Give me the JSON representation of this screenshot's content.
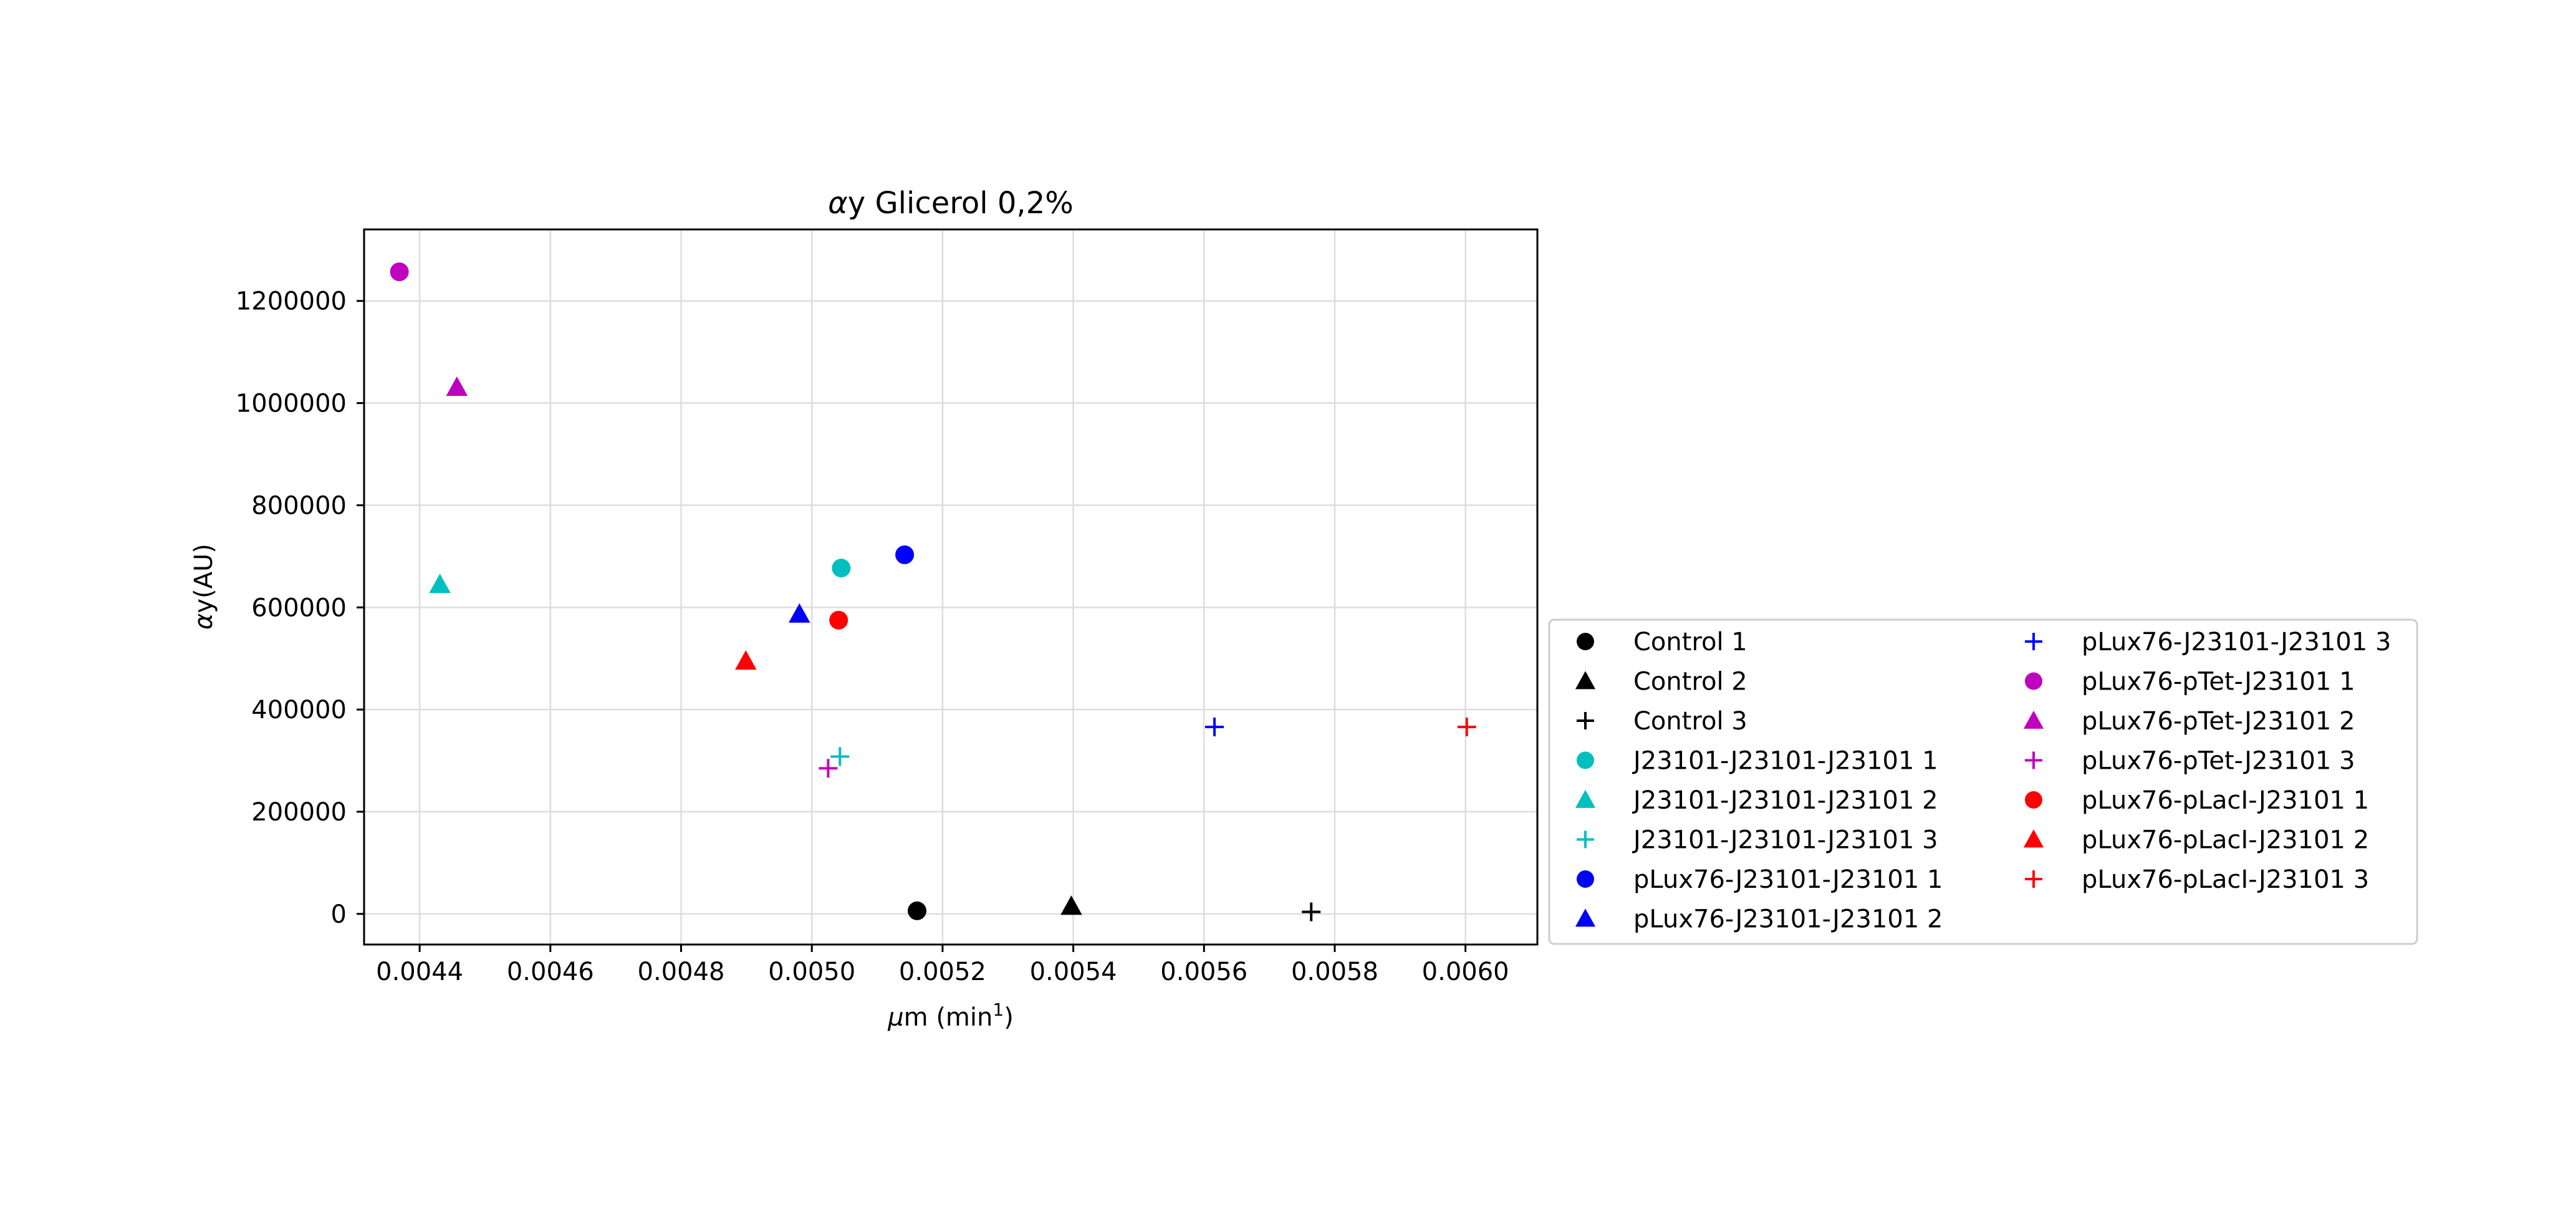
{
  "chart_data": {
    "type": "scatter",
    "title": {
      "prefix": "α",
      "rest": "y Glicerol 0,2%"
    },
    "xlabel": {
      "prefix": "μ",
      "rest": "m (min",
      "sup": "1",
      "close": ")"
    },
    "ylabel": {
      "prefix": "α",
      "rest": "y(AU)"
    },
    "xlim": [
      0.004315,
      0.00611
    ],
    "ylim": [
      -60000,
      1340000
    ],
    "x_ticks": [
      {
        "value": 0.0044,
        "label": "0.0044"
      },
      {
        "value": 0.0046,
        "label": "0.0046"
      },
      {
        "value": 0.0048,
        "label": "0.0048"
      },
      {
        "value": 0.005,
        "label": "0.0050"
      },
      {
        "value": 0.0052,
        "label": "0.0052"
      },
      {
        "value": 0.0054,
        "label": "0.0054"
      },
      {
        "value": 0.0056,
        "label": "0.0056"
      },
      {
        "value": 0.0058,
        "label": "0.0058"
      },
      {
        "value": 0.006,
        "label": "0.0060"
      }
    ],
    "y_ticks": [
      {
        "value": 0,
        "label": "0"
      },
      {
        "value": 200000,
        "label": "200000"
      },
      {
        "value": 400000,
        "label": "400000"
      },
      {
        "value": 600000,
        "label": "600000"
      },
      {
        "value": 800000,
        "label": "800000"
      },
      {
        "value": 1000000,
        "label": "1000000"
      },
      {
        "value": 1200000,
        "label": "1200000"
      }
    ],
    "grid": true,
    "legend_position": "right, outside plot, two columns",
    "series": [
      {
        "name": "Control 1",
        "marker": "circle",
        "color": "#000000",
        "x": 0.005161,
        "y": 6000
      },
      {
        "name": "Control 2",
        "marker": "triangle",
        "color": "#000000",
        "x": 0.005397,
        "y": 15000
      },
      {
        "name": "Control 3",
        "marker": "plus",
        "color": "#000000",
        "x": 0.005764,
        "y": 4000
      },
      {
        "name": "J23101-J23101-J23101 1",
        "marker": "circle",
        "color": "#00bfbf",
        "x": 0.005045,
        "y": 677000
      },
      {
        "name": "J23101-J23101-J23101 2",
        "marker": "triangle",
        "color": "#00bfbf",
        "x": 0.004431,
        "y": 645000
      },
      {
        "name": "J23101-J23101-J23101 3",
        "marker": "plus",
        "color": "#00bfbf",
        "x": 0.005043,
        "y": 308000
      },
      {
        "name": "pLux76-J23101-J23101 1",
        "marker": "circle",
        "color": "#0000ff",
        "x": 0.005142,
        "y": 703000
      },
      {
        "name": "pLux76-J23101-J23101 2",
        "marker": "triangle",
        "color": "#0000ff",
        "x": 0.004981,
        "y": 587000
      },
      {
        "name": "pLux76-J23101-J23101 3",
        "marker": "plus",
        "color": "#0000ff",
        "x": 0.005616,
        "y": 366000
      },
      {
        "name": "pLux76-pTet-J23101 1",
        "marker": "circle",
        "color": "#bf00bf",
        "x": 0.004369,
        "y": 1257000
      },
      {
        "name": "pLux76-pTet-J23101 2",
        "marker": "triangle",
        "color": "#bf00bf",
        "x": 0.004457,
        "y": 1031000
      },
      {
        "name": "pLux76-pTet-J23101 3",
        "marker": "plus",
        "color": "#bf00bf",
        "x": 0.005025,
        "y": 285000
      },
      {
        "name": "pLux76-pLacI-J23101 1",
        "marker": "circle",
        "color": "#ff0000",
        "x": 0.005041,
        "y": 575000
      },
      {
        "name": "pLux76-pLacI-J23101 2",
        "marker": "triangle",
        "color": "#ff0000",
        "x": 0.004899,
        "y": 495000
      },
      {
        "name": "pLux76-pLacI-J23101 3",
        "marker": "plus",
        "color": "#ff0000",
        "x": 0.006002,
        "y": 366000
      }
    ]
  }
}
